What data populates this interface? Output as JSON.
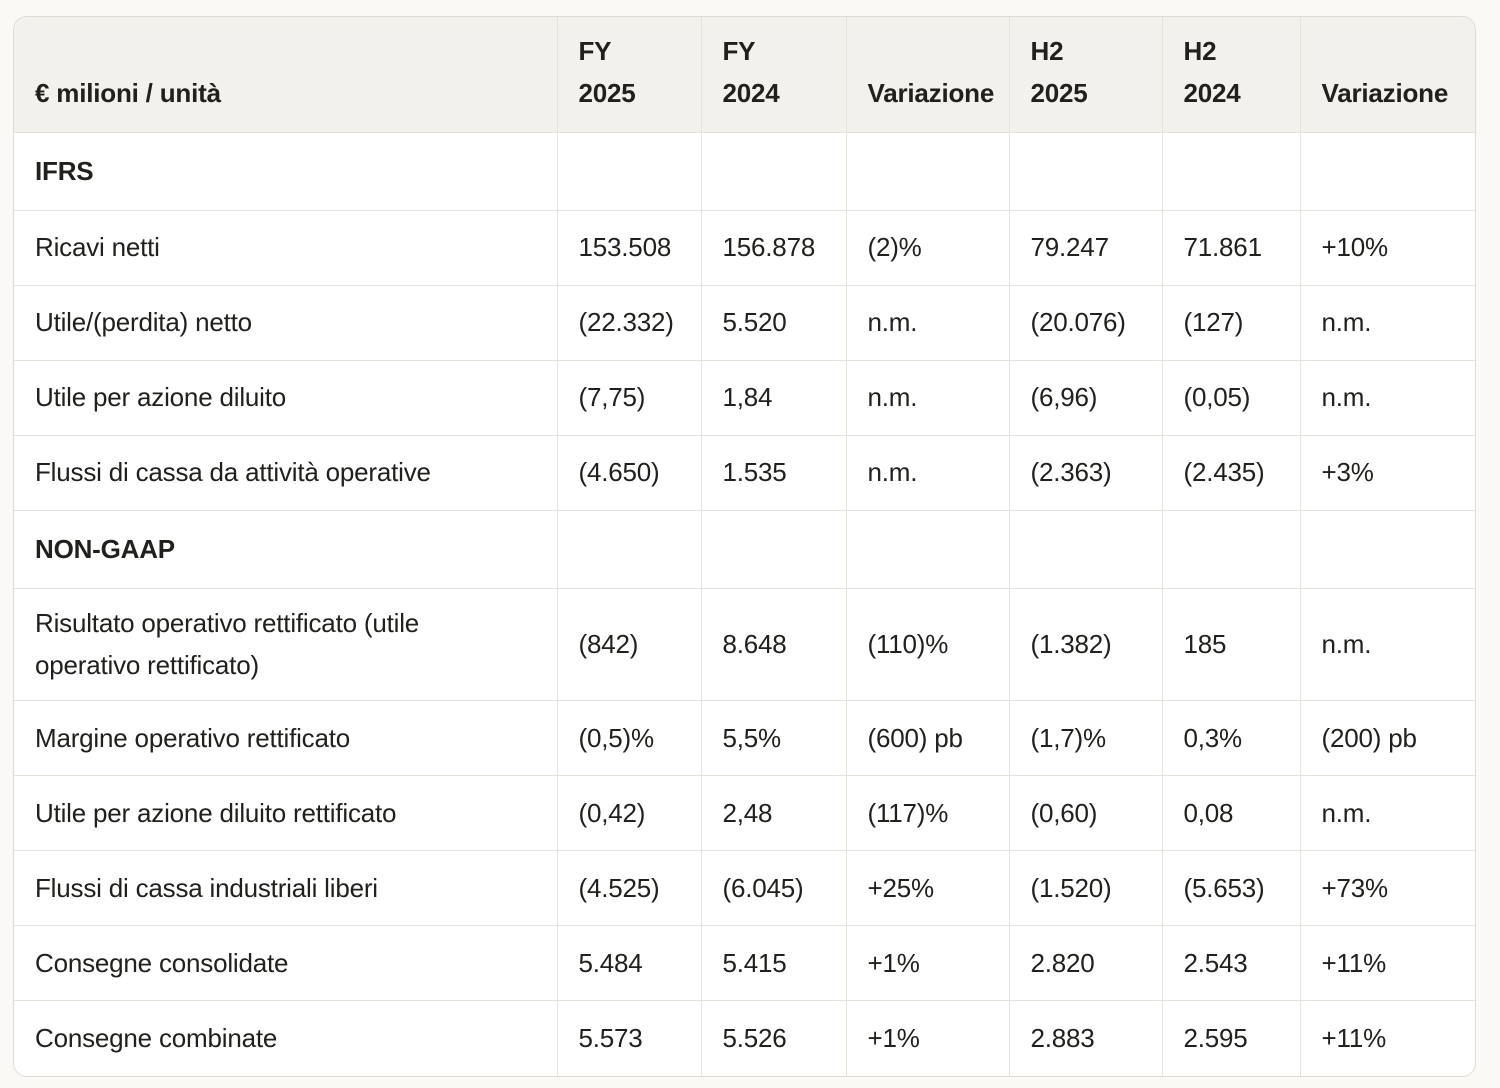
{
  "page": {
    "background_color": "#faf9f5",
    "text_color": "#21201c"
  },
  "table": {
    "colors": {
      "header_background": "#f2f1eb",
      "body_background": "#ffffff",
      "gridline": "#e5e3db",
      "outer_border": "#dcdad2"
    },
    "headers": [
      "€ milioni / unità",
      "FY\n2025",
      "FY\n2024",
      "Variazione",
      "H2\n2025",
      "H2\n2024",
      "Variazione"
    ],
    "rows": [
      {
        "type": "section",
        "label": "IFRS",
        "values": [
          "",
          "",
          "",
          "",
          "",
          ""
        ]
      },
      {
        "type": "data",
        "label": "Ricavi netti",
        "values": [
          "153.508",
          "156.878",
          "(2)%",
          "79.247",
          "71.861",
          "+10%"
        ]
      },
      {
        "type": "data",
        "label": "Utile/(perdita) netto",
        "values": [
          "(22.332)",
          "5.520",
          "n.m.",
          "(20.076)",
          "(127)",
          "n.m."
        ]
      },
      {
        "type": "data",
        "label": "Utile per azione diluito",
        "values": [
          "(7,75)",
          "1,84",
          "n.m.",
          "(6,96)",
          "(0,05)",
          "n.m."
        ]
      },
      {
        "type": "data",
        "label": "Flussi di cassa da attività operative",
        "values": [
          "(4.650)",
          "1.535",
          "n.m.",
          "(2.363)",
          "(2.435)",
          "+3%"
        ]
      },
      {
        "type": "section",
        "label": "NON-GAAP",
        "values": [
          "",
          "",
          "",
          "",
          "",
          ""
        ]
      },
      {
        "type": "data",
        "label": "Risultato operativo rettificato (utile operativo rettificato)",
        "values": [
          "(842)",
          "8.648",
          "(110)%",
          "(1.382)",
          "185",
          "n.m."
        ]
      },
      {
        "type": "data",
        "label": "Margine operativo rettificato",
        "values": [
          "(0,5)%",
          "5,5%",
          "(600) pb",
          "(1,7)%",
          "0,3%",
          "(200) pb"
        ]
      },
      {
        "type": "data",
        "label": "Utile per azione diluito rettificato",
        "values": [
          "(0,42)",
          "2,48",
          "(117)%",
          "(0,60)",
          "0,08",
          "n.m."
        ]
      },
      {
        "type": "data",
        "label": "Flussi di cassa industriali liberi",
        "values": [
          "(4.525)",
          "(6.045)",
          "+25%",
          "(1.520)",
          "(5.653)",
          "+73%"
        ]
      },
      {
        "type": "data",
        "label": "Consegne consolidate",
        "values": [
          "5.484",
          "5.415",
          "+1%",
          "2.820",
          "2.543",
          "+11%"
        ]
      },
      {
        "type": "data",
        "label": "Consegne combinate",
        "values": [
          "5.573",
          "5.526",
          "+1%",
          "2.883",
          "2.595",
          "+11%"
        ]
      }
    ]
  }
}
